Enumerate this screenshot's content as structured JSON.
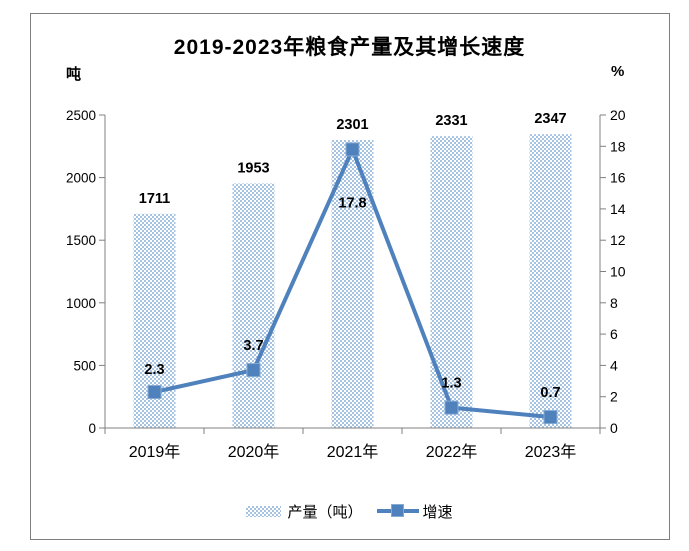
{
  "chart_data": {
    "type": "combo-bar-line",
    "title": "2019-2023年粮食产量及其增长速度",
    "categories": [
      "2019年",
      "2020年",
      "2021年",
      "2022年",
      "2023年"
    ],
    "series": [
      {
        "name": "产量（吨）",
        "type": "bar",
        "axis": "left",
        "values": [
          1711,
          1953,
          2301,
          2331,
          2347
        ]
      },
      {
        "name": "增速",
        "type": "line",
        "axis": "right",
        "values": [
          2.3,
          3.7,
          17.8,
          1.3,
          0.7
        ]
      }
    ],
    "left_axis": {
      "unit": "吨",
      "min": 0,
      "max": 2500,
      "step": 500,
      "tick_labels": [
        "0",
        "500",
        "1000",
        "1500",
        "2000",
        "2500"
      ]
    },
    "right_axis": {
      "unit": "%",
      "min": 0,
      "max": 20,
      "step": 2,
      "tick_labels": [
        "0",
        "2",
        "4",
        "6",
        "8",
        "10",
        "12",
        "14",
        "16",
        "18",
        "20"
      ]
    },
    "legend": {
      "position": "bottom",
      "items": [
        "产量（吨）",
        "增速"
      ]
    },
    "grid": false,
    "data_labels": true,
    "colors": {
      "line": "#4f81bd",
      "marker": "#4f81bd",
      "marker_edge": "#85aad4",
      "bar_pattern": "#a6c3e1",
      "axis": "#808080",
      "text": "#000000",
      "frame": "#7f7f7f",
      "background": "#ffffff"
    }
  }
}
